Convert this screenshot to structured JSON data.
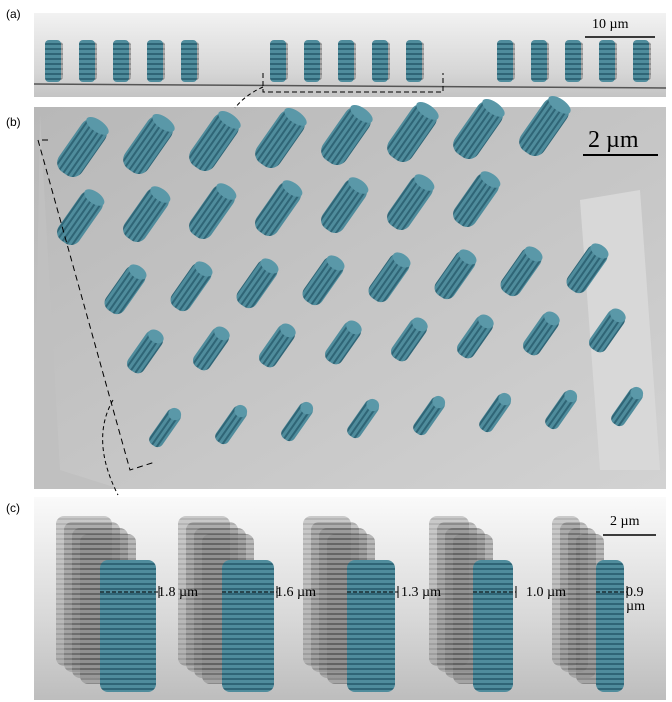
{
  "panels": [
    {
      "label": "(a)",
      "scale_bar": "10 µm"
    },
    {
      "label": "(b)",
      "scale_bar": "2 µm"
    },
    {
      "label": "(c)",
      "scale_bar": "2 µm",
      "measurements": [
        "1.8 µm",
        "1.6 µm",
        "1.3 µm",
        "1.0 µm",
        "0.9 µm"
      ]
    }
  ]
}
